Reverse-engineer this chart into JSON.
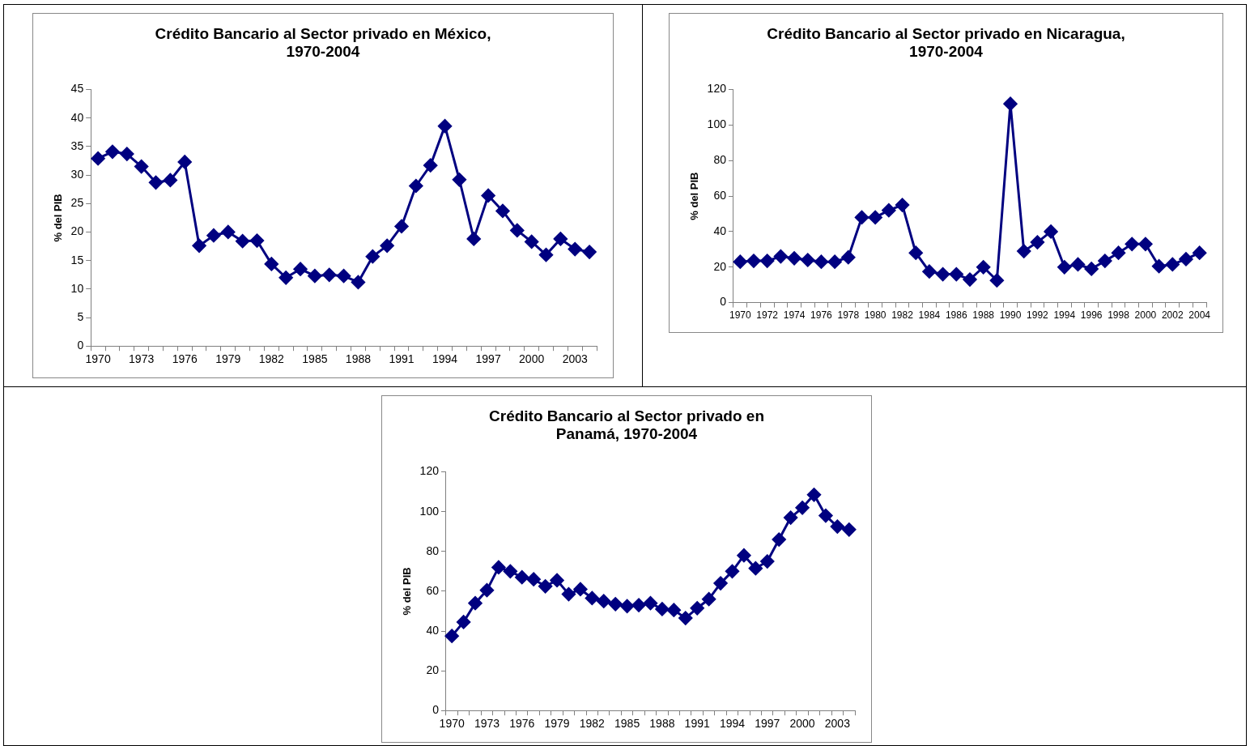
{
  "chart_data": [
    {
      "type": "line",
      "title": "Crédito Bancario al Sector privado en México,\n1970-2004",
      "ylabel": "% del PIB",
      "categories": [
        "1970",
        null,
        null,
        "1973",
        null,
        null,
        "1976",
        null,
        null,
        "1979",
        null,
        null,
        "1982",
        null,
        null,
        "1985",
        null,
        null,
        "1988",
        null,
        null,
        "1991",
        null,
        null,
        "1994",
        null,
        null,
        "1997",
        null,
        null,
        "2000",
        null,
        null,
        "2003",
        null
      ],
      "series": [
        {
          "color": "#000080",
          "values": [
            32.9,
            34.1,
            33.7,
            31.5,
            28.7,
            29.1,
            32.3,
            17.6,
            19.4,
            20.0,
            18.4,
            18.5,
            14.4,
            12.0,
            13.5,
            12.3,
            12.5,
            12.3,
            11.2,
            15.7,
            17.6,
            21.0,
            28.1,
            31.7,
            38.6,
            29.2,
            18.8,
            26.4,
            23.7,
            20.3,
            18.3,
            16.0,
            18.8,
            17.0,
            16.5
          ]
        }
      ],
      "ylim": [
        0,
        45
      ],
      "yticks": [
        0,
        5,
        10,
        15,
        20,
        25,
        30,
        35,
        40,
        45
      ],
      "grid": false,
      "legend": false,
      "marker": "diamond",
      "line_style": "solid"
    },
    {
      "type": "line",
      "title": "Crédito Bancario al Sector privado en Nicaragua,\n1970-2004",
      "ylabel": "% del PIB",
      "categories": [
        "1970",
        null,
        "1972",
        null,
        "1974",
        null,
        "1976",
        null,
        "1978",
        null,
        "1980",
        null,
        "1982",
        null,
        "1984",
        null,
        "1986",
        null,
        "1988",
        null,
        "1990",
        null,
        "1992",
        null,
        "1994",
        null,
        "1996",
        null,
        "1998",
        null,
        "2000",
        null,
        "2002",
        null,
        "2004"
      ],
      "series": [
        {
          "color": "#000080",
          "values": [
            23,
            23.5,
            23.5,
            26,
            25,
            24,
            23,
            23,
            25.5,
            48,
            48,
            52,
            55,
            28,
            17.5,
            16,
            16,
            13,
            20,
            12.5,
            112,
            29,
            34,
            40,
            20,
            21.5,
            19,
            23.5,
            28,
            33,
            33,
            20.5,
            21.5,
            24.5,
            28
          ]
        }
      ],
      "ylim": [
        0,
        120
      ],
      "yticks": [
        0,
        20,
        40,
        60,
        80,
        100,
        120
      ],
      "grid": false,
      "legend": false,
      "marker": "diamond",
      "line_style": "solid"
    },
    {
      "type": "line",
      "title": "Crédito Bancario al Sector privado en\nPanamá, 1970-2004",
      "ylabel": "% del PIB",
      "categories": [
        "1970",
        null,
        null,
        "1973",
        null,
        null,
        "1976",
        null,
        null,
        "1979",
        null,
        null,
        "1982",
        null,
        null,
        "1985",
        null,
        null,
        "1988",
        null,
        null,
        "1991",
        null,
        null,
        "1994",
        null,
        null,
        "1997",
        null,
        null,
        "2000",
        null,
        null,
        "2003",
        null
      ],
      "series": [
        {
          "color": "#000080",
          "values": [
            37.5,
            44.5,
            54,
            60.5,
            72,
            70,
            67,
            66,
            62.5,
            65.5,
            58.5,
            61,
            56.5,
            55,
            53.5,
            52.5,
            53,
            54,
            51,
            50.5,
            46.5,
            51.5,
            56,
            64,
            70,
            78,
            71.5,
            75,
            86,
            97,
            102,
            108.5,
            98,
            92.5,
            91
          ]
        }
      ],
      "ylim": [
        0,
        120
      ],
      "yticks": [
        0,
        20,
        40,
        60,
        80,
        100,
        120
      ],
      "grid": false,
      "legend": false,
      "marker": "diamond",
      "line_style": "solid"
    }
  ]
}
